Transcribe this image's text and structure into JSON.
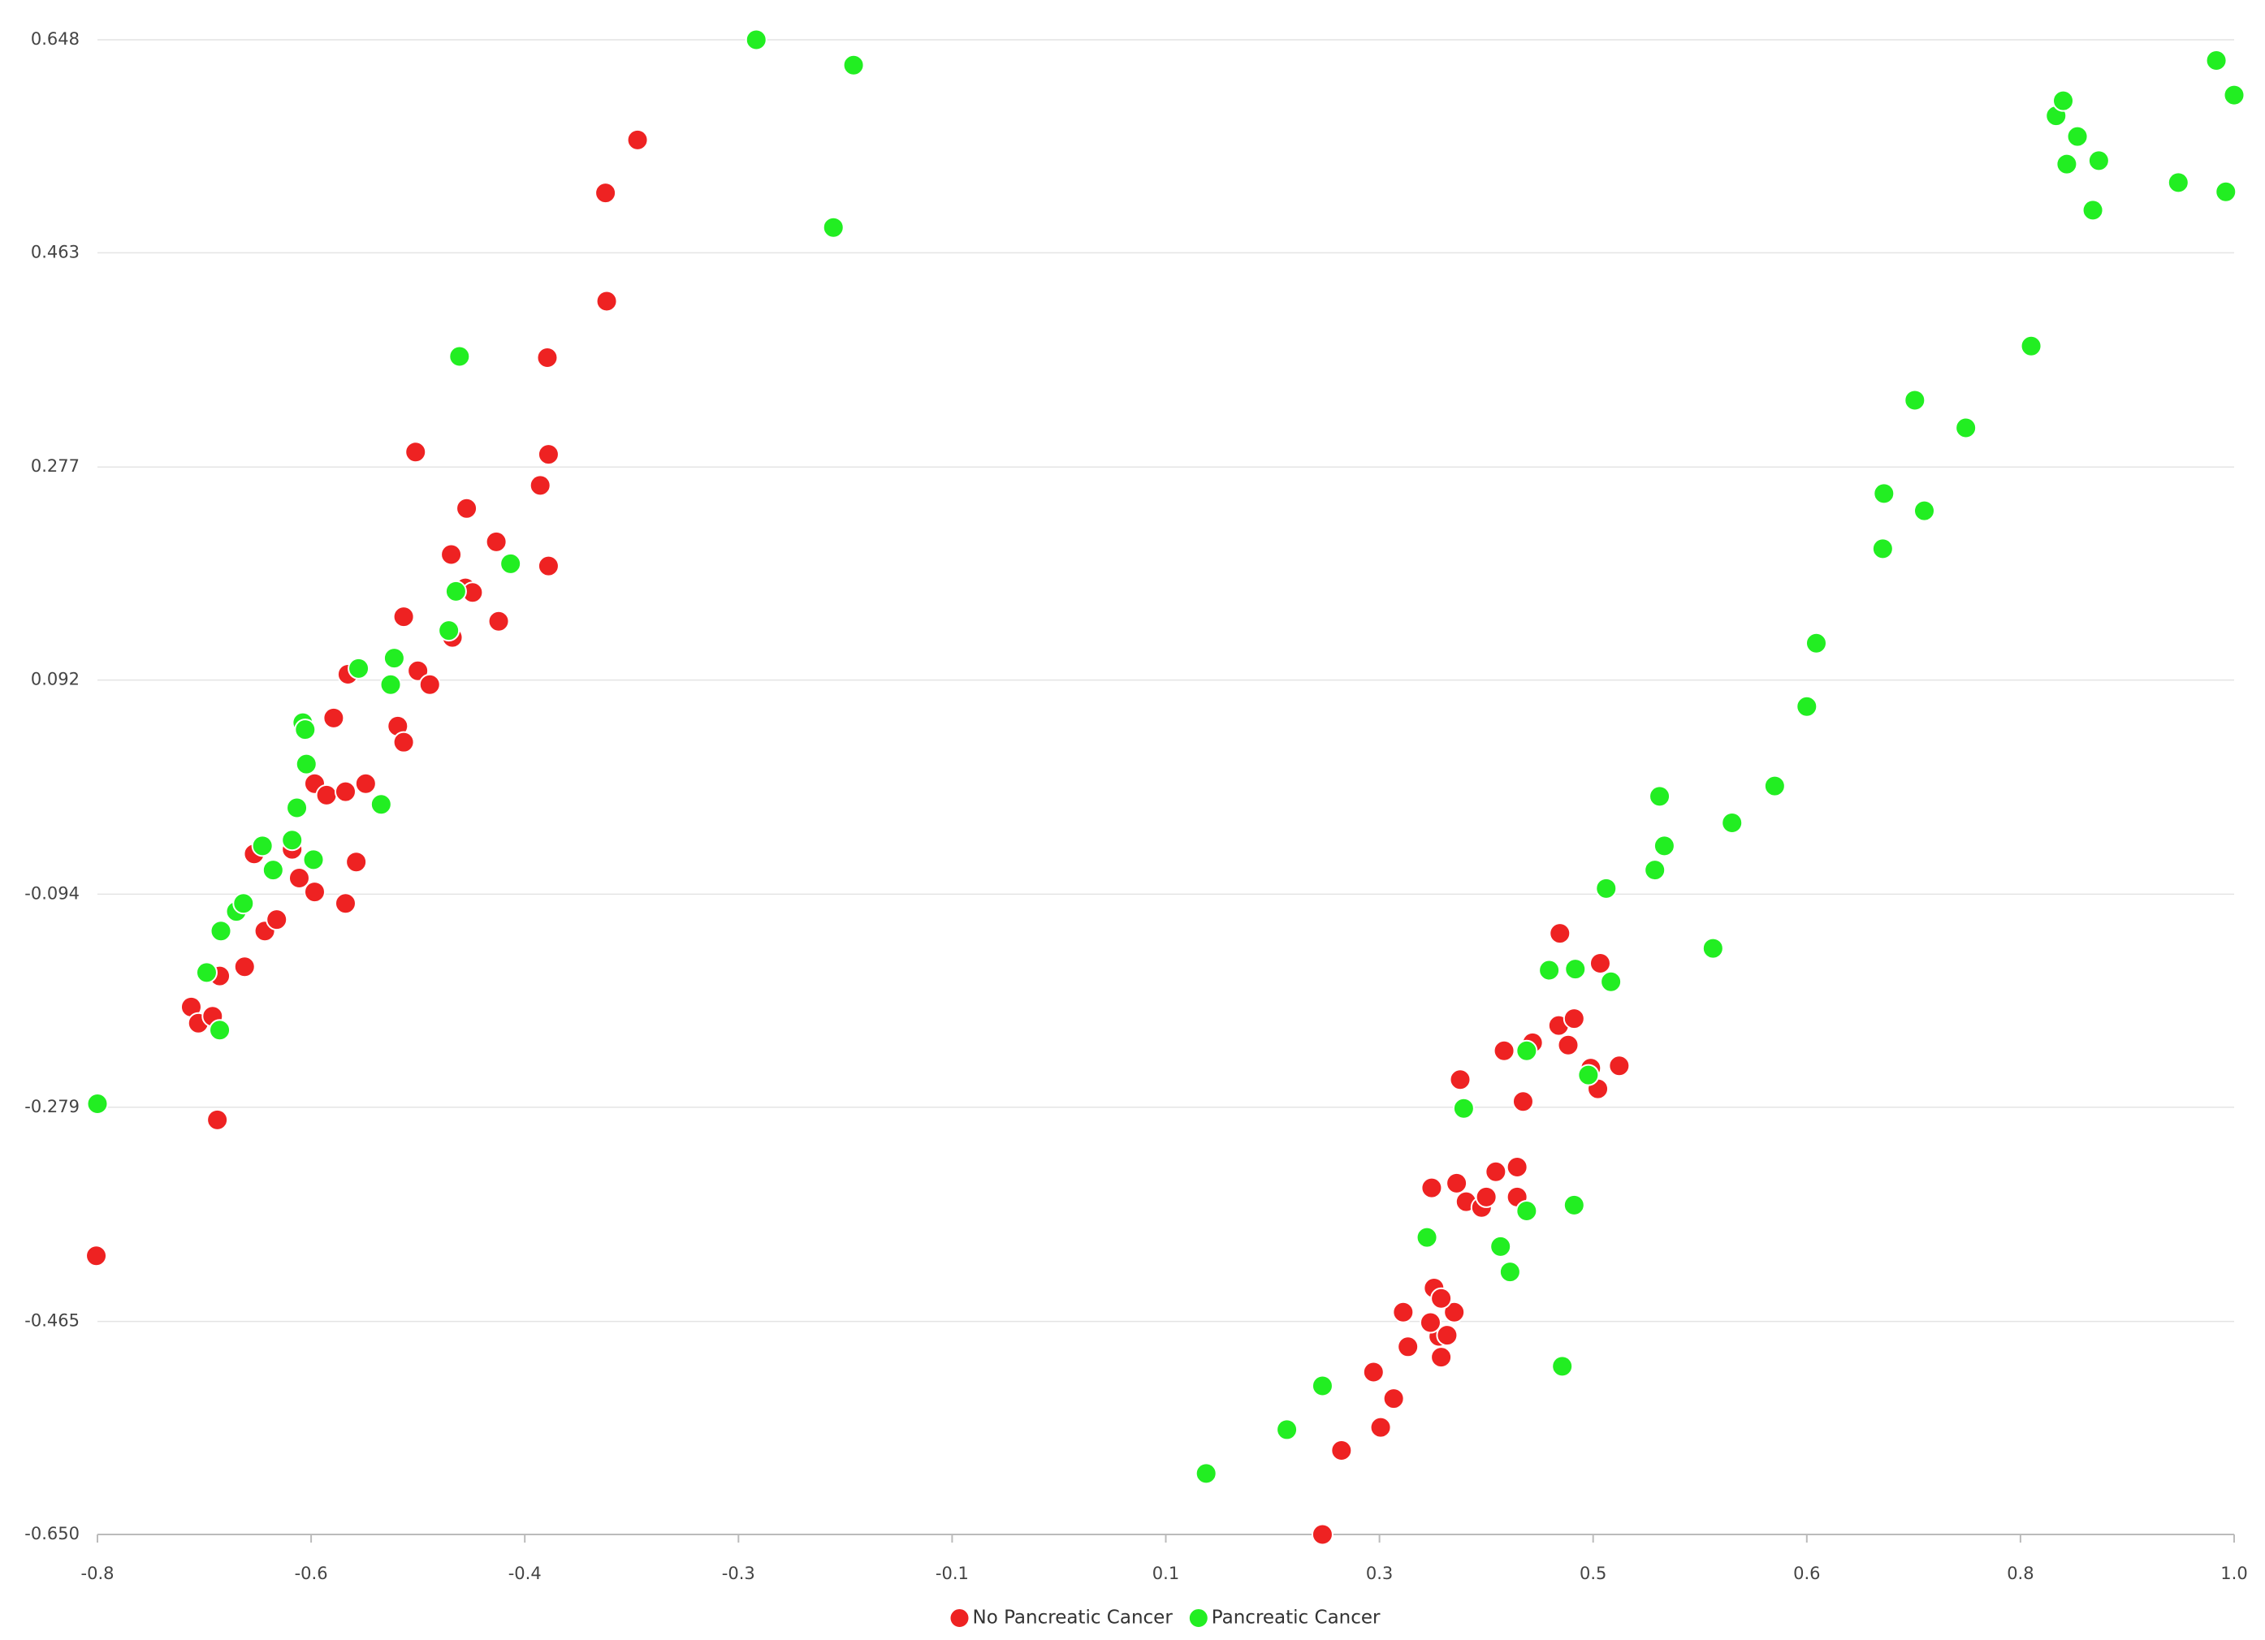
{
  "chart_data": {
    "type": "scatter",
    "xlim": [
      -0.8,
      1.0
    ],
    "ylim": [
      -0.65,
      0.648
    ],
    "xticks": [
      {
        "value": -0.8,
        "label": "-0.8"
      },
      {
        "value": -0.62,
        "label": "-0.6"
      },
      {
        "value": -0.44,
        "label": "-0.4"
      },
      {
        "value": -0.26,
        "label": "-0.3"
      },
      {
        "value": -0.08,
        "label": "-0.1"
      },
      {
        "value": 0.1,
        "label": "0.1"
      },
      {
        "value": 0.28,
        "label": "0.3"
      },
      {
        "value": 0.46,
        "label": "0.5"
      },
      {
        "value": 0.64,
        "label": "0.6"
      },
      {
        "value": 0.82,
        "label": "0.8"
      },
      {
        "value": 1.0,
        "label": "1.0"
      }
    ],
    "yticks": [
      {
        "value": -0.65,
        "label": "-0.650"
      },
      -0.465,
      -0.279,
      -0.094,
      0.092,
      0.277,
      0.463,
      0.648
    ],
    "grid": true,
    "legend": "bottom",
    "series": [
      {
        "name": "No Pancreatic Cancer",
        "color": "#ee2222",
        "x": [
          -0.801,
          -0.699,
          -0.721,
          -0.715,
          -0.703,
          -0.697,
          -0.676,
          -0.659,
          -0.649,
          -0.668,
          -0.636,
          -0.63,
          -0.617,
          -0.591,
          -0.582,
          -0.617,
          -0.607,
          -0.591,
          -0.574,
          -0.601,
          -0.589,
          -0.547,
          -0.542,
          -0.53,
          -0.52,
          -0.542,
          -0.501,
          -0.502,
          -0.49,
          -0.484,
          -0.462,
          -0.464,
          -0.489,
          -0.532,
          -0.427,
          -0.42,
          -0.42,
          -0.421,
          -0.371,
          -0.372,
          -0.345,
          0.232,
          0.248,
          0.281,
          0.292,
          0.275,
          0.304,
          0.3,
          0.332,
          0.33,
          0.337,
          0.323,
          0.343,
          0.326,
          0.332,
          0.324,
          0.345,
          0.353,
          0.366,
          0.37,
          0.378,
          0.396,
          0.396,
          0.401,
          0.348,
          0.385,
          0.409,
          0.431,
          0.439,
          0.444,
          0.432,
          0.466,
          0.458,
          0.464,
          0.482
        ],
        "y": [
          -0.408,
          -0.29,
          -0.192,
          -0.206,
          -0.2,
          -0.165,
          -0.157,
          -0.126,
          -0.116,
          -0.059,
          -0.055,
          -0.08,
          -0.092,
          -0.102,
          -0.066,
          0.002,
          -0.008,
          -0.005,
          0.002,
          0.059,
          0.097,
          0.052,
          0.038,
          0.1,
          0.088,
          0.147,
          0.129,
          0.201,
          0.172,
          0.168,
          0.143,
          0.212,
          0.241,
          0.29,
          0.261,
          0.288,
          0.191,
          0.372,
          0.421,
          0.515,
          0.561,
          -0.65,
          -0.577,
          -0.557,
          -0.532,
          -0.509,
          -0.487,
          -0.457,
          -0.496,
          -0.478,
          -0.477,
          -0.466,
          -0.457,
          -0.436,
          -0.445,
          -0.349,
          -0.345,
          -0.361,
          -0.366,
          -0.357,
          -0.335,
          -0.357,
          -0.331,
          -0.274,
          -0.255,
          -0.23,
          -0.223,
          -0.208,
          -0.225,
          -0.202,
          -0.128,
          -0.154,
          -0.245,
          -0.263,
          -0.243
        ]
      },
      {
        "name": "Pancreatic Cancer",
        "color": "#22ee22",
        "x": [
          -0.8,
          -0.697,
          -0.708,
          -0.696,
          -0.683,
          -0.677,
          -0.661,
          -0.652,
          -0.636,
          -0.618,
          -0.632,
          -0.624,
          -0.627,
          -0.625,
          -0.561,
          -0.58,
          -0.553,
          -0.55,
          -0.504,
          -0.498,
          -0.452,
          -0.495,
          -0.245,
          -0.163,
          -0.18,
          0.134,
          0.202,
          0.232,
          0.434,
          0.32,
          0.382,
          0.39,
          0.404,
          0.444,
          0.351,
          0.404,
          0.456,
          0.423,
          0.445,
          0.475,
          0.471,
          0.512,
          0.52,
          0.516,
          0.561,
          0.577,
          0.613,
          0.64,
          0.648,
          0.704,
          0.705,
          0.739,
          0.731,
          0.774,
          0.829,
          0.881,
          0.859,
          0.886,
          0.85,
          0.856,
          0.868,
          0.953,
          0.993,
          0.985,
          1.0
        ],
        "y": [
          -0.276,
          -0.212,
          -0.162,
          -0.126,
          -0.109,
          -0.102,
          -0.052,
          -0.073,
          -0.047,
          -0.064,
          -0.019,
          0.019,
          0.055,
          0.049,
          -0.016,
          0.102,
          0.088,
          0.111,
          0.135,
          0.169,
          0.193,
          0.373,
          0.648,
          0.626,
          0.485,
          -0.597,
          -0.559,
          -0.521,
          -0.504,
          -0.392,
          -0.4,
          -0.422,
          -0.369,
          -0.364,
          -0.28,
          -0.23,
          -0.251,
          -0.16,
          -0.159,
          -0.17,
          -0.089,
          -0.073,
          -0.052,
          -0.009,
          -0.141,
          -0.032,
          0.0,
          0.069,
          0.124,
          0.206,
          0.254,
          0.239,
          0.335,
          0.311,
          0.382,
          0.5,
          0.54,
          0.543,
          0.582,
          0.595,
          0.564,
          0.524,
          0.516,
          0.63,
          0.6
        ]
      }
    ]
  }
}
